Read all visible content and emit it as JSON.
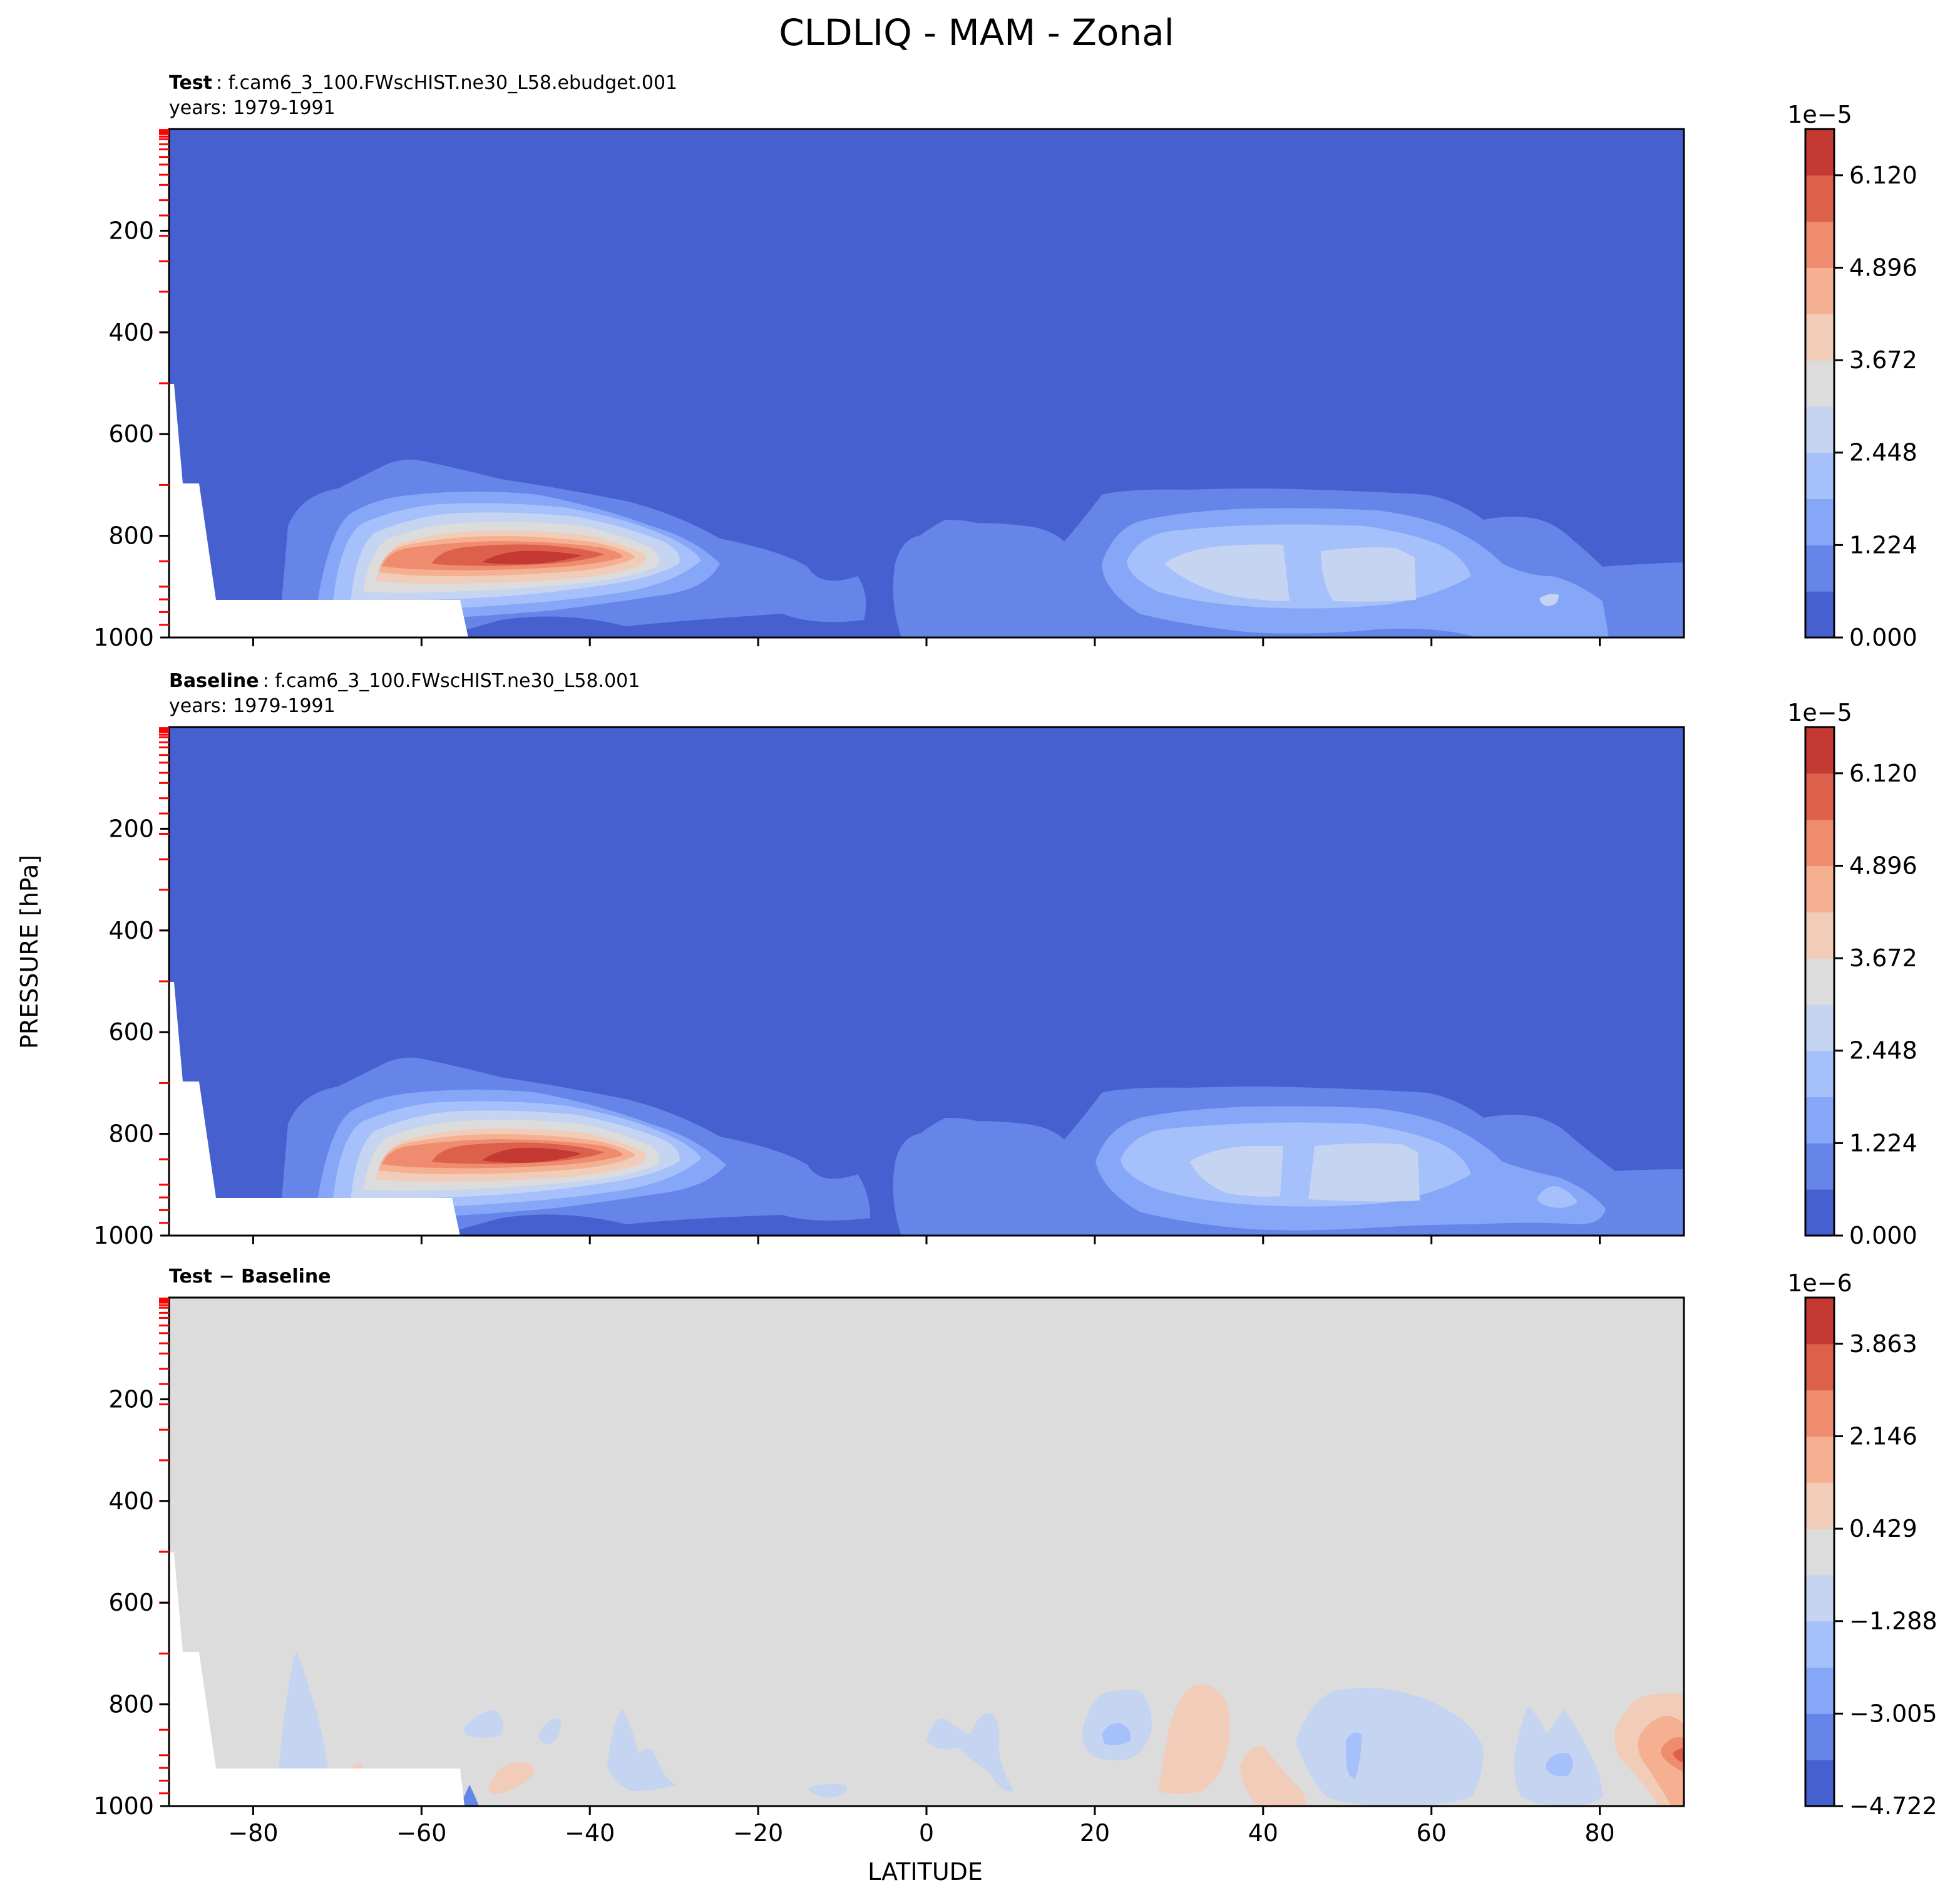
{
  "figure": {
    "title": "CLDLIQ - MAM - Zonal",
    "ylabel": "PRESSURE [hPa]",
    "xlabel": "LATITUDE"
  },
  "colors": {
    "cmap": [
      "#4760d0",
      "#6685e8",
      "#86a6f7",
      "#a5c0fa",
      "#c4d4f1",
      "#dcdcdc",
      "#f1ccb8",
      "#f5b092",
      "#ef8b6e",
      "#dd604d",
      "#c43a33"
    ],
    "land_mask": "#ffffff",
    "level_tick": "#ff0000"
  },
  "chart_data": [
    {
      "type": "contour",
      "name_bold": "Test",
      "name_rest": ": f.cam6_3_100.FWscHIST.ne30_L58.ebudget.001",
      "years": "years: 1979-1991",
      "colorbar": {
        "exponent": "1e−5",
        "ticks": [
          "0.000",
          "1.224",
          "2.448",
          "3.672",
          "4.896",
          "6.120"
        ],
        "levels": 11
      },
      "xlim": [
        -90,
        90
      ],
      "ylim": [
        1000,
        0
      ],
      "yticks": [
        "200",
        "400",
        "600",
        "800",
        "1000"
      ]
    },
    {
      "type": "contour",
      "name_bold": "Baseline",
      "name_rest": ": f.cam6_3_100.FWscHIST.ne30_L58.001",
      "years": "years: 1979-1991",
      "colorbar": {
        "exponent": "1e−5",
        "ticks": [
          "0.000",
          "1.224",
          "2.448",
          "3.672",
          "4.896",
          "6.120"
        ],
        "levels": 11
      },
      "xlim": [
        -90,
        90
      ],
      "ylim": [
        1000,
        0
      ],
      "yticks": [
        "200",
        "400",
        "600",
        "800",
        "1000"
      ]
    },
    {
      "type": "contour",
      "name_bold": "Test − Baseline",
      "name_rest": "",
      "years": "",
      "colorbar": {
        "exponent": "1e−6",
        "ticks": [
          "−4.722",
          "−3.005",
          "−1.288",
          "0.429",
          "2.146",
          "3.863"
        ],
        "levels": 11
      },
      "xlim": [
        -90,
        90
      ],
      "ylim": [
        1000,
        0
      ],
      "yticks": [
        "200",
        "400",
        "600",
        "800",
        "1000"
      ],
      "xticks": [
        "−80",
        "−60",
        "−40",
        "−20",
        "0",
        "20",
        "40",
        "60",
        "80"
      ]
    }
  ]
}
